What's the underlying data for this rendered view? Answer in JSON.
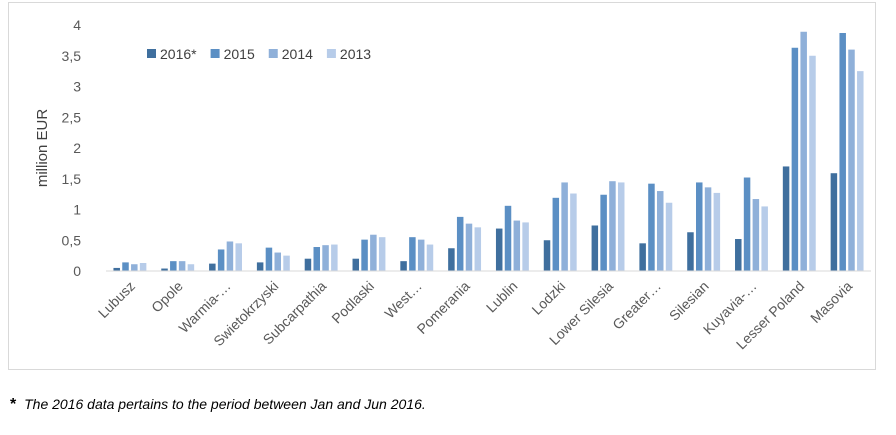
{
  "chart_data": {
    "type": "bar",
    "ylabel": "million EUR",
    "ylim": [
      0,
      4
    ],
    "yticks": [
      "0",
      "0,5",
      "1",
      "1,5",
      "2",
      "2,5",
      "3",
      "3,5",
      "4"
    ],
    "grid": false,
    "legend_position": "top-left",
    "categories": [
      "Lubusz",
      "Opole",
      "Warmia-…",
      "Swietokrzyski",
      "Subcarpathia",
      "Podlaski",
      "West…",
      "Pomerania",
      "Lublin",
      "Lodzki",
      "Lower Silesia",
      "Greater…",
      "Silesian",
      "Kuyavia-…",
      "Lesser Poland",
      "Masovia"
    ],
    "series": [
      {
        "name": "2016*",
        "color": "#3f6f9e",
        "values": [
          0.05,
          0.04,
          0.12,
          0.14,
          0.2,
          0.2,
          0.16,
          0.37,
          0.69,
          0.5,
          0.74,
          0.45,
          0.63,
          0.52,
          1.7,
          1.59
        ]
      },
      {
        "name": "2015",
        "color": "#5b8fc4",
        "values": [
          0.14,
          0.16,
          0.35,
          0.38,
          0.39,
          0.51,
          0.55,
          0.88,
          1.06,
          1.19,
          1.24,
          1.42,
          1.44,
          1.52,
          3.63,
          3.87
        ]
      },
      {
        "name": "2014",
        "color": "#8fb0d9",
        "values": [
          0.11,
          0.16,
          0.48,
          0.3,
          0.42,
          0.59,
          0.51,
          0.77,
          0.82,
          1.44,
          1.46,
          1.3,
          1.36,
          1.17,
          3.89,
          3.6
        ]
      },
      {
        "name": "2013",
        "color": "#b7cce9",
        "values": [
          0.13,
          0.11,
          0.45,
          0.25,
          0.43,
          0.55,
          0.43,
          0.71,
          0.79,
          1.26,
          1.44,
          1.11,
          1.27,
          1.05,
          3.5,
          3.25
        ]
      }
    ]
  },
  "footnote": {
    "marker": "*",
    "text": "The 2016 data pertains to the period between Jan and Jun 2016."
  }
}
